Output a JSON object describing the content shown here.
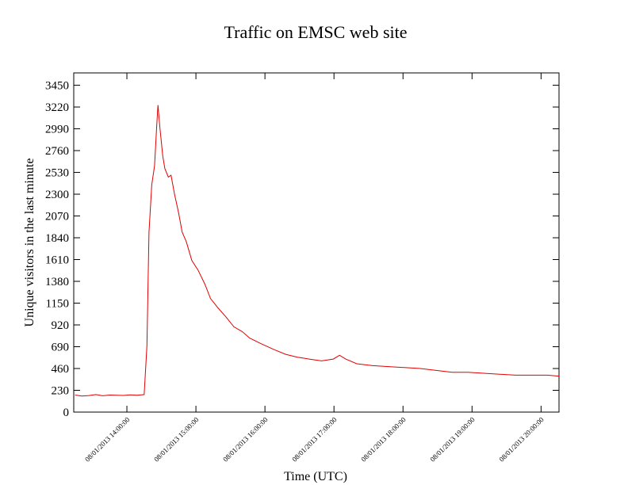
{
  "chart_data": {
    "type": "line",
    "title": "Traffic on EMSC web site",
    "x_label": "Time (UTC)",
    "y_label": "Unique visitors in the last minute",
    "x": [
      13.25,
      13.35,
      13.45,
      13.55,
      13.65,
      13.75,
      13.85,
      13.95,
      14.05,
      14.15,
      14.25,
      14.29,
      14.32,
      14.36,
      14.4,
      14.43,
      14.45,
      14.48,
      14.52,
      14.55,
      14.6,
      14.64,
      14.69,
      14.75,
      14.8,
      14.86,
      14.94,
      15.03,
      15.13,
      15.21,
      15.32,
      15.44,
      15.55,
      15.67,
      15.78,
      15.95,
      16.13,
      16.3,
      16.47,
      16.64,
      16.82,
      16.99,
      17.08,
      17.17,
      17.33,
      17.56,
      17.79,
      18.02,
      18.25,
      18.48,
      18.71,
      18.94,
      19.17,
      19.4,
      19.63,
      19.86,
      20.09,
      20.26
    ],
    "series": [
      {
        "name": "Unique visitors",
        "color": "#e00000",
        "values": [
          180,
          170,
          175,
          185,
          172,
          180,
          178,
          176,
          182,
          178,
          185,
          700,
          1900,
          2400,
          2600,
          3000,
          3240,
          2990,
          2700,
          2570,
          2480,
          2500,
          2300,
          2100,
          1900,
          1800,
          1600,
          1500,
          1350,
          1200,
          1100,
          1000,
          900,
          850,
          780,
          720,
          660,
          610,
          580,
          560,
          540,
          560,
          600,
          560,
          510,
          490,
          480,
          470,
          460,
          440,
          420,
          420,
          410,
          400,
          390,
          390,
          390,
          380
        ]
      }
    ],
    "xlim": [
      13.23,
      20.26
    ],
    "xticks": [
      {
        "value": 14,
        "label": "08/01/2013 14:00:00"
      },
      {
        "value": 15,
        "label": "08/01/2013 15:00:00"
      },
      {
        "value": 16,
        "label": "08/01/2013 16:00:00"
      },
      {
        "value": 17,
        "label": "08/01/2013 17:00:00"
      },
      {
        "value": 18,
        "label": "08/01/2013 18:00:00"
      },
      {
        "value": 19,
        "label": "08/01/2013 19:00:00"
      },
      {
        "value": 20,
        "label": "08/01/2013 20:00:00"
      }
    ],
    "ylim": [
      0,
      3580
    ],
    "yticks": [
      0,
      230,
      460,
      690,
      920,
      1150,
      1380,
      1610,
      1840,
      2070,
      2300,
      2530,
      2760,
      2990,
      3220,
      3450
    ]
  }
}
